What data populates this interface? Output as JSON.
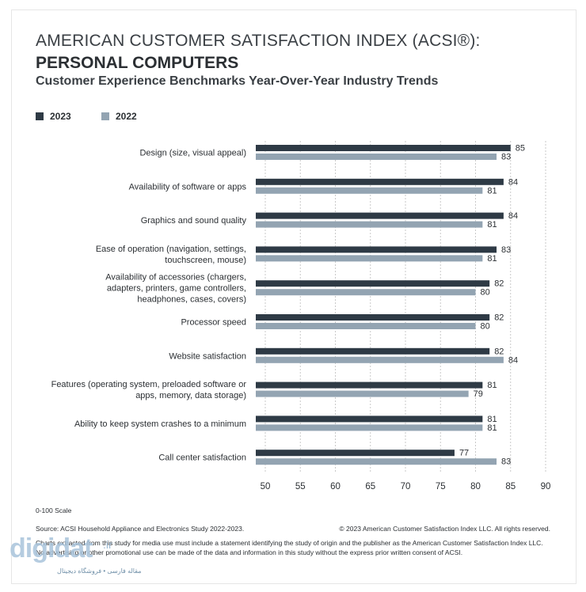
{
  "header": {
    "title_line1": "AMERICAN CUSTOMER SATISFACTION INDEX (ACSI®):",
    "title_line2": "PERSONAL COMPUTERS",
    "subtitle": "Customer Experience Benchmarks Year-Over-Year Industry Trends"
  },
  "legend": [
    {
      "label": "2023",
      "color": "#2e3a45"
    },
    {
      "label": "2022",
      "color": "#93a4b2"
    }
  ],
  "chart_data": {
    "type": "bar",
    "orientation": "horizontal",
    "title": "Customer Experience Benchmarks Year-Over-Year Industry Trends",
    "xlim": [
      50,
      90
    ],
    "ticks": [
      50,
      55,
      60,
      65,
      70,
      75,
      80,
      85,
      90
    ],
    "categories": [
      [
        "Design (size, visual appeal)"
      ],
      [
        "Availability of software or apps"
      ],
      [
        "Graphics and sound quality"
      ],
      [
        "Ease of operation (navigation, settings,",
        "touchscreen, mouse)"
      ],
      [
        "Availability of accessories (chargers,",
        "adapters, printers, game controllers,",
        "headphones, cases, covers)"
      ],
      [
        "Processor speed"
      ],
      [
        "Website satisfaction"
      ],
      [
        "Features (operating system, preloaded software or",
        "apps, memory, data storage)"
      ],
      [
        "Ability to keep system crashes to a minimum"
      ],
      [
        "Call center satisfaction"
      ]
    ],
    "series": [
      {
        "name": "2023",
        "color": "#2e3a45",
        "values": [
          85,
          84,
          84,
          83,
          82,
          82,
          82,
          81,
          81,
          77
        ]
      },
      {
        "name": "2022",
        "color": "#93a4b2",
        "values": [
          83,
          81,
          81,
          81,
          80,
          80,
          84,
          79,
          81,
          83
        ]
      }
    ],
    "grid": "vertical dashed"
  },
  "footer": {
    "scale": "0-100 Scale",
    "source": "Source: ACSI Household Appliance and Electronics Study 2022-2023.",
    "copyright": "© 2023 American Customer Satisfaction Index LLC. All rights reserved.",
    "disclaimer1": "Charts extracted from this study for media use must include a statement identifying the study of origin and the publisher as the American Customer Satisfaction Index LLC.",
    "disclaimer2": "No advertising or other promotional use can be made of the data and information in this study without the express prior written consent of ACSI."
  },
  "watermark": {
    "logo": "digidat",
    "domain": ".ir",
    "tagline": "مقاله فارسی • فروشگاه دیجیتال"
  }
}
